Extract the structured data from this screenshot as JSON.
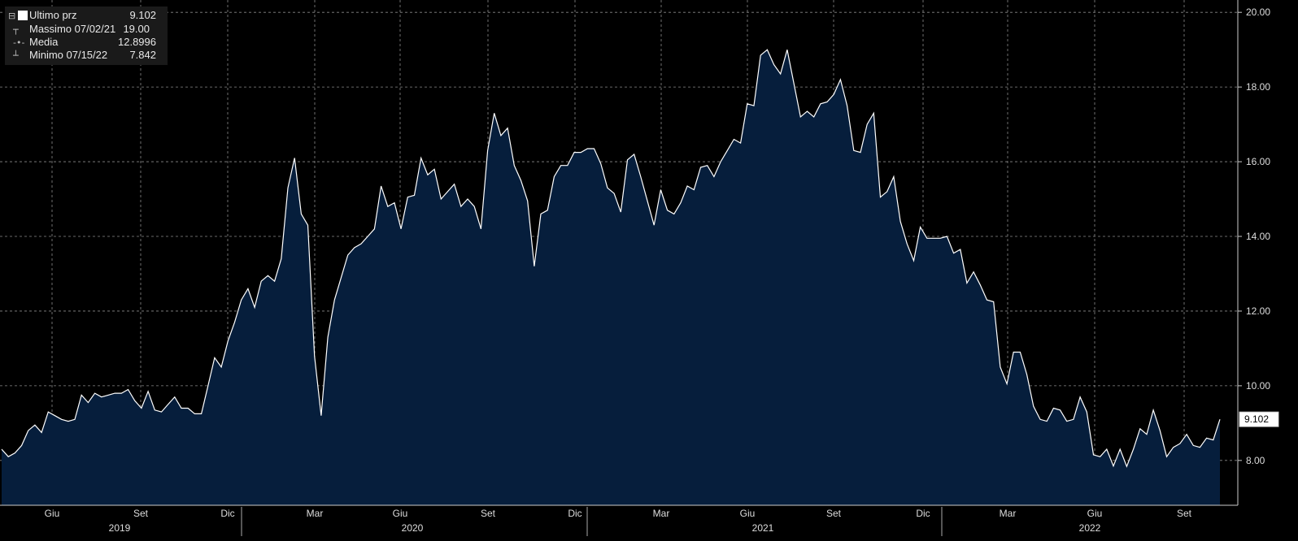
{
  "legend": {
    "last": {
      "label": "Ultimo prz",
      "value": "9.102"
    },
    "high": {
      "label": "Massimo 07/02/21",
      "value": "19.00"
    },
    "avg": {
      "label": "Media",
      "value": "12.8996"
    },
    "low": {
      "label": "Minimo 07/15/22",
      "value": "7.842"
    }
  },
  "colors": {
    "area": "#061e3c",
    "line": "#ffffff",
    "grid": "#8a8a8a",
    "background": "#000000"
  },
  "chart_data": {
    "type": "area",
    "title": "",
    "xlabel": "",
    "ylabel": "",
    "ylim": [
      6.8,
      20.2
    ],
    "y_ticks": [
      "8.00",
      "10.00",
      "12.00",
      "14.00",
      "16.00",
      "18.00",
      "20.00"
    ],
    "last_value_label": "9.102",
    "grid": true,
    "month_ticks": [
      "Giu",
      "Set",
      "Dic",
      "Mar",
      "Giu",
      "Set",
      "Dic",
      "Mar",
      "Giu",
      "Set",
      "Dic",
      "Mar",
      "Giu",
      "Set"
    ],
    "year_labels": [
      "2019",
      "2020",
      "2021",
      "2022"
    ],
    "series": [
      {
        "values": [
          8.3,
          8.1,
          8.2,
          8.4,
          8.8,
          8.95,
          8.75,
          9.3,
          9.2,
          9.1,
          9.05,
          9.1,
          9.75,
          9.55,
          9.8,
          9.7,
          9.75,
          9.8,
          9.8,
          9.9,
          9.6,
          9.4,
          9.85,
          9.35,
          9.3,
          9.5,
          9.7,
          9.4,
          9.4,
          9.25,
          9.25,
          10.0,
          10.75,
          10.5,
          11.2,
          11.7,
          12.3,
          12.6,
          12.1,
          12.8,
          12.95,
          12.8,
          13.4,
          15.3,
          16.1,
          14.6,
          14.3,
          10.8,
          9.2,
          11.3,
          12.3,
          12.9,
          13.5,
          13.7,
          13.8,
          14.0,
          14.2,
          15.35,
          14.8,
          14.9,
          14.2,
          15.05,
          15.1,
          16.1,
          15.65,
          15.8,
          15.0,
          15.2,
          15.4,
          14.8,
          15.0,
          14.8,
          14.2,
          16.3,
          17.3,
          16.7,
          16.9,
          15.9,
          15.5,
          14.95,
          13.2,
          14.6,
          14.7,
          15.6,
          15.9,
          15.9,
          16.25,
          16.25,
          16.35,
          16.35,
          15.95,
          15.3,
          15.15,
          14.65,
          16.05,
          16.2,
          15.6,
          14.95,
          14.3,
          15.25,
          14.7,
          14.6,
          14.9,
          15.35,
          15.25,
          15.85,
          15.9,
          15.6,
          16.0,
          16.3,
          16.6,
          16.5,
          17.55,
          17.5,
          18.85,
          19.0,
          18.6,
          18.35,
          19.0,
          18.1,
          17.2,
          17.35,
          17.2,
          17.55,
          17.6,
          17.8,
          18.2,
          17.5,
          16.3,
          16.25,
          17.0,
          17.3,
          15.05,
          15.2,
          15.6,
          14.4,
          13.8,
          13.35,
          14.25,
          13.95,
          13.95,
          13.95,
          14.0,
          13.55,
          13.65,
          12.75,
          13.05,
          12.7,
          12.3,
          12.25,
          10.5,
          10.05,
          10.9,
          10.9,
          10.3,
          9.45,
          9.1,
          9.05,
          9.4,
          9.35,
          9.05,
          9.1,
          9.7,
          9.3,
          8.15,
          8.1,
          8.3,
          7.85,
          8.3,
          7.84,
          8.3,
          8.85,
          8.7,
          9.35,
          8.8,
          8.1,
          8.35,
          8.45,
          8.7,
          8.4,
          8.35,
          8.6,
          8.55,
          9.102
        ]
      }
    ]
  }
}
